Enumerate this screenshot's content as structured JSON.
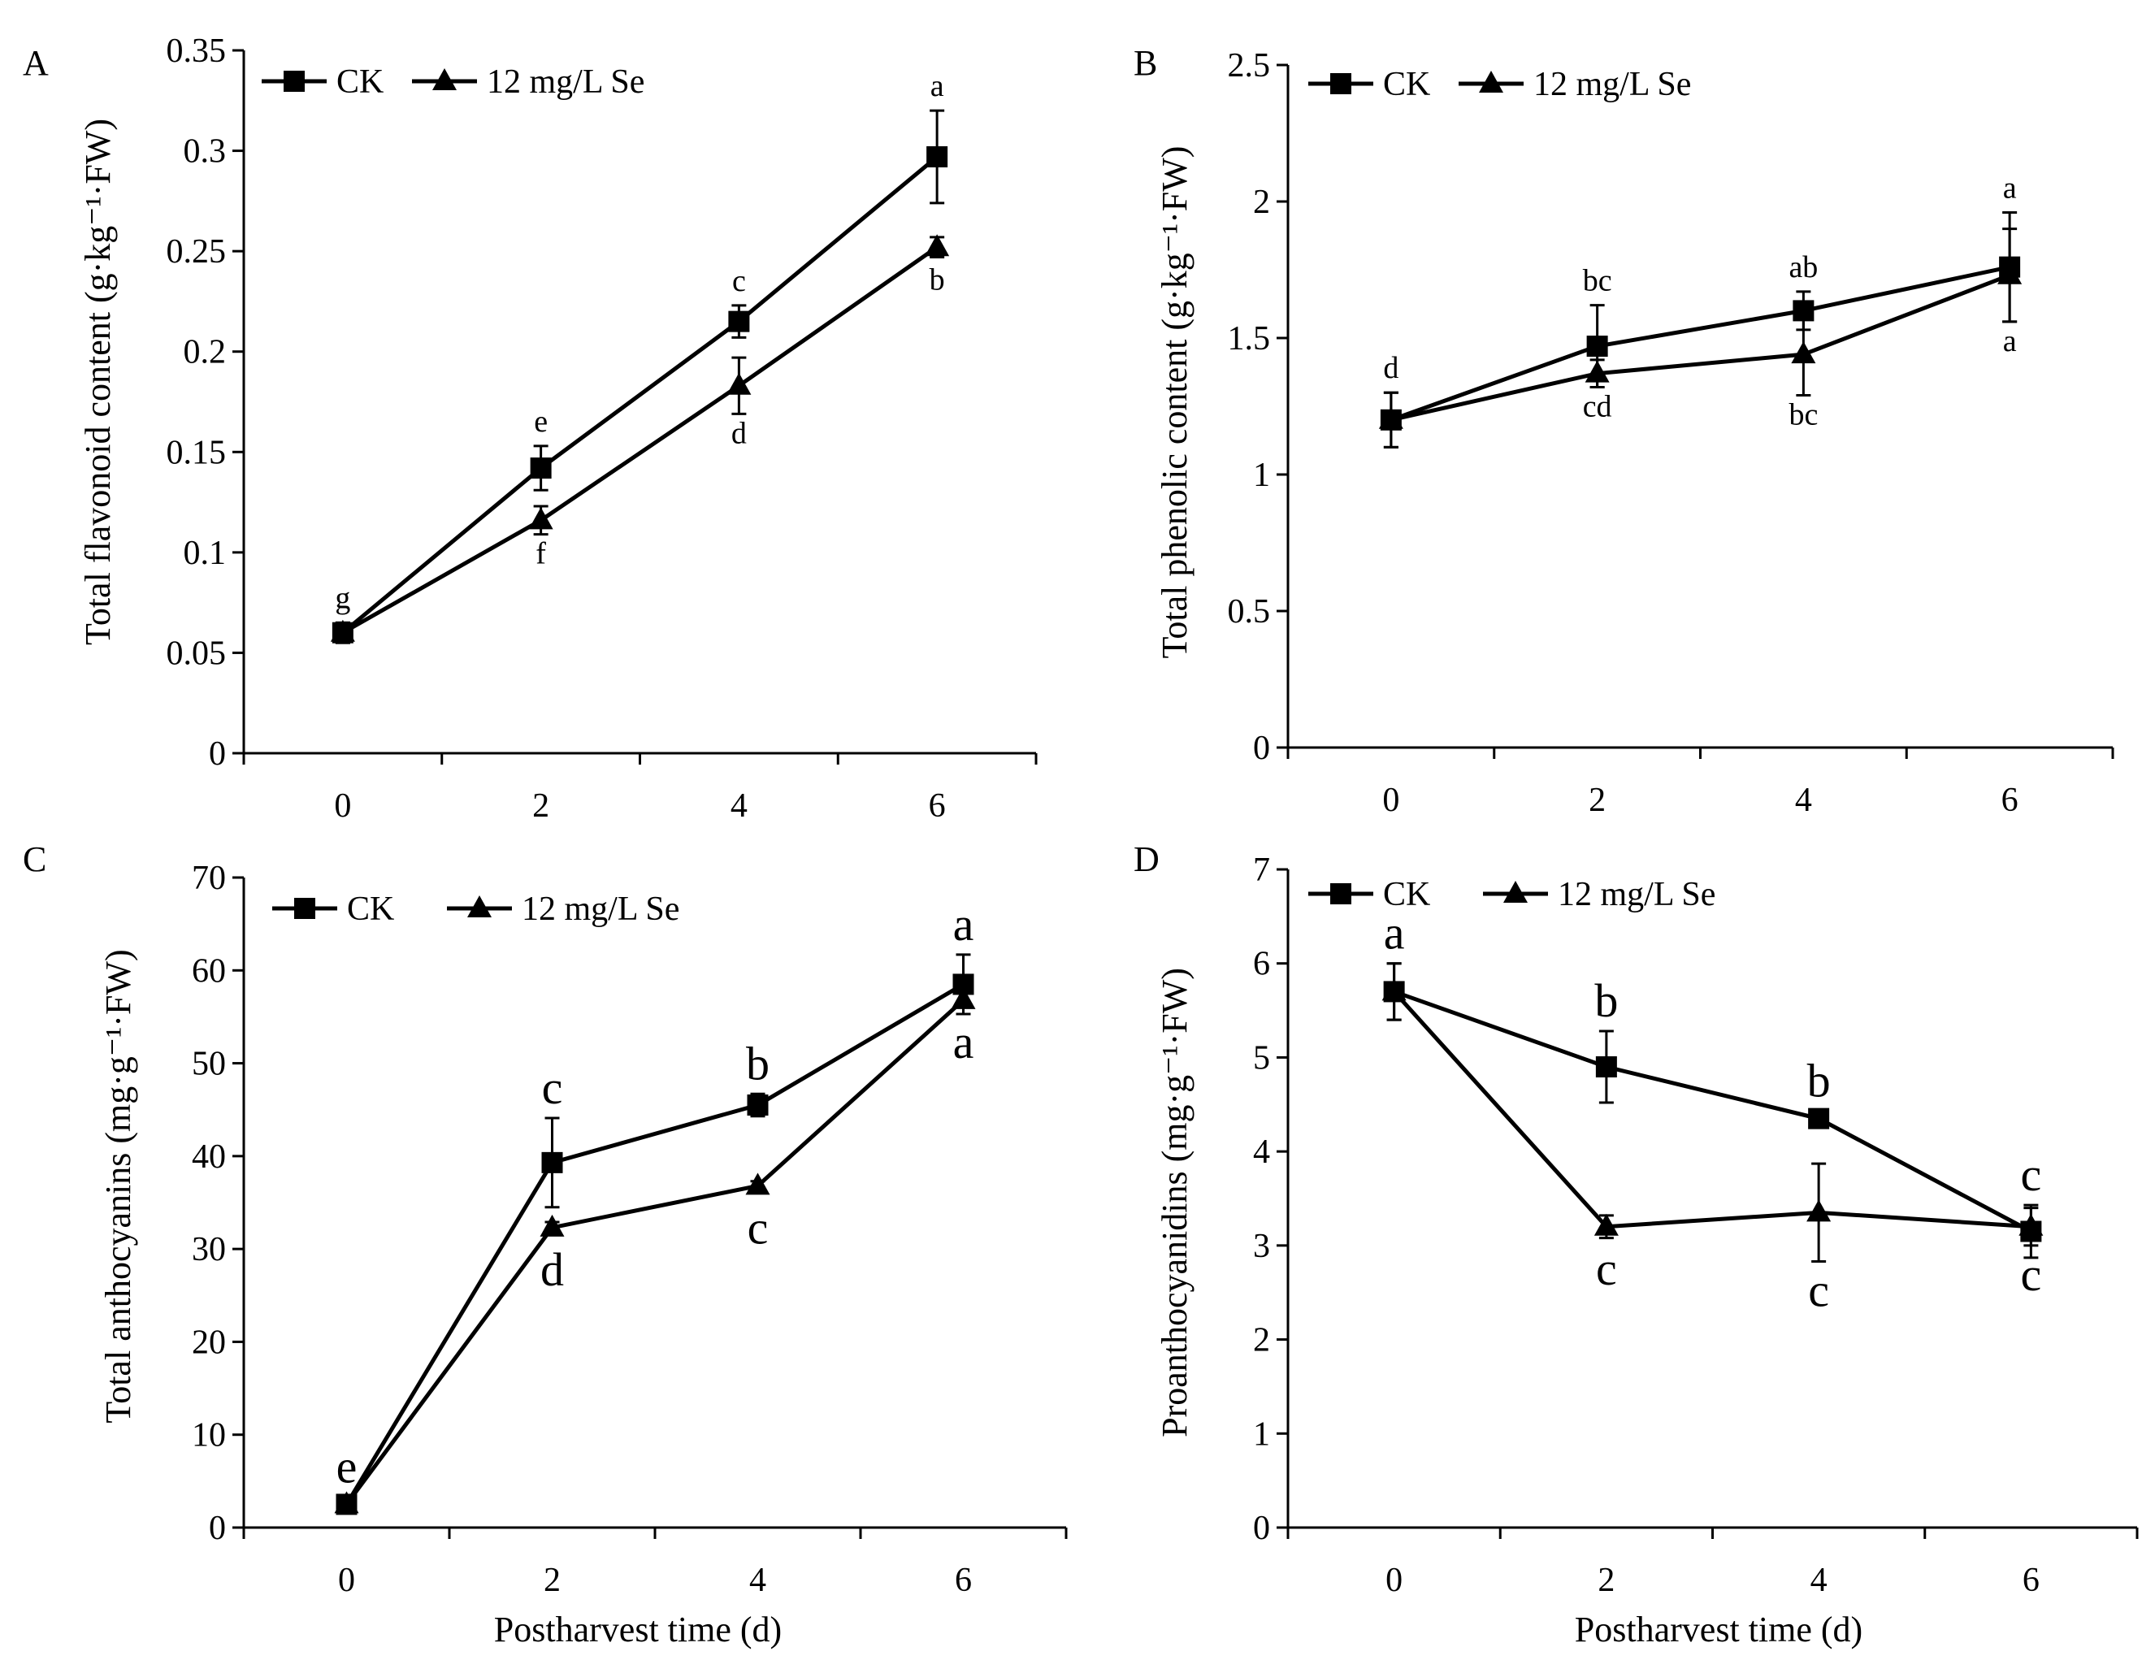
{
  "chart_data": [
    {
      "panel": "A",
      "type": "line",
      "xlabel": "",
      "ylabel": "Total flavonoid content (g·kg⁻¹·FW)",
      "x": [
        0,
        2,
        4,
        6
      ],
      "xlim": [
        -1,
        7
      ],
      "ylim": [
        0,
        0.35
      ],
      "yticks": [
        0,
        0.05,
        0.1,
        0.15,
        0.2,
        0.25,
        0.3,
        0.35
      ],
      "ytick_labels": [
        "0",
        "0.05",
        "0.1",
        "0.15",
        "0.2",
        "0.25",
        "0.3",
        "0.35"
      ],
      "xtick_labels": [
        "0",
        "2",
        "4",
        "6"
      ],
      "legend": {
        "position": "top-left",
        "entries": [
          "CK",
          "12 mg/L Se"
        ]
      },
      "letter_size": "small",
      "series": [
        {
          "name": "CK",
          "marker": "square",
          "values": [
            0.06,
            0.142,
            0.215,
            0.297
          ],
          "errors": [
            0.005,
            0.011,
            0.008,
            0.023
          ],
          "letters": [
            "g",
            "e",
            "c",
            "a"
          ],
          "letter_side": [
            "above",
            "above",
            "above",
            "above"
          ]
        },
        {
          "name": "12 mg/L Se",
          "marker": "triangle",
          "values": [
            0.06,
            0.116,
            0.183,
            0.252
          ],
          "errors": [
            0.005,
            0.007,
            0.014,
            0.005
          ],
          "letters": [
            "",
            "f",
            "d",
            "b"
          ],
          "letter_side": [
            "below",
            "below",
            "below",
            "below"
          ]
        }
      ]
    },
    {
      "panel": "B",
      "type": "line",
      "xlabel": "",
      "ylabel": "Total phenolic content (g·kg⁻¹·FW)",
      "x": [
        0,
        2,
        4,
        6
      ],
      "xlim": [
        -1,
        7
      ],
      "ylim": [
        0,
        2.5
      ],
      "yticks": [
        0,
        0.5,
        1,
        1.5,
        2,
        2.5
      ],
      "ytick_labels": [
        "0",
        "0.5",
        "1",
        "1.5",
        "2",
        "2.5"
      ],
      "xtick_labels": [
        "0",
        "2",
        "4",
        "6"
      ],
      "legend": {
        "position": "top-left",
        "entries": [
          "CK",
          "12 mg/L Se"
        ]
      },
      "letter_size": "small",
      "series": [
        {
          "name": "CK",
          "marker": "square",
          "values": [
            1.2,
            1.47,
            1.6,
            1.76
          ],
          "errors": [
            0.1,
            0.15,
            0.07,
            0.2
          ],
          "letters": [
            "d",
            "bc",
            "ab",
            "a"
          ],
          "letter_side": [
            "above",
            "above",
            "above",
            "above"
          ]
        },
        {
          "name": "12 mg/L Se",
          "marker": "triangle",
          "values": [
            1.2,
            1.37,
            1.44,
            1.73
          ],
          "errors": [
            0.1,
            0.05,
            0.15,
            0.17
          ],
          "letters": [
            "",
            "cd",
            "bc",
            "a"
          ],
          "letter_side": [
            "below",
            "below",
            "below",
            "below"
          ]
        }
      ]
    },
    {
      "panel": "C",
      "type": "line",
      "xlabel": "Postharvest time (d)",
      "ylabel": "Total anthocyanins (mg·g⁻¹·FW)",
      "x": [
        0,
        2,
        4,
        6
      ],
      "xlim": [
        -1,
        7
      ],
      "ylim": [
        0,
        70
      ],
      "yticks": [
        0,
        10,
        20,
        30,
        40,
        50,
        60,
        70
      ],
      "ytick_labels": [
        "0",
        "10",
        "20",
        "30",
        "40",
        "50",
        "60",
        "70"
      ],
      "xtick_labels": [
        "0",
        "2",
        "4",
        "6"
      ],
      "legend": {
        "position": "top-left",
        "entries": [
          "CK",
          "12 mg/L Se"
        ]
      },
      "letter_size": "large",
      "series": [
        {
          "name": "CK",
          "marker": "square",
          "values": [
            2.5,
            39.3,
            45.5,
            58.5
          ],
          "errors": [
            0.8,
            4.8,
            1.2,
            3.2
          ],
          "letters": [
            "e",
            "c",
            "b",
            "a"
          ],
          "letter_side": [
            "above",
            "above",
            "above",
            "above"
          ]
        },
        {
          "name": "12 mg/L Se",
          "marker": "triangle",
          "values": [
            2.5,
            32.3,
            36.8,
            56.8
          ],
          "errors": [
            0.5,
            0.6,
            0.5,
            0.8
          ],
          "letters": [
            "",
            "d",
            "c",
            "a"
          ],
          "letter_side": [
            "below",
            "below",
            "below",
            "below"
          ]
        }
      ]
    },
    {
      "panel": "D",
      "type": "line",
      "xlabel": "Postharvest time (d)",
      "ylabel": "Proanthocyanidins (mg·g⁻¹·FW)",
      "x": [
        0,
        2,
        4,
        6
      ],
      "xlim": [
        -1,
        7
      ],
      "ylim": [
        0,
        7
      ],
      "yticks": [
        0,
        1,
        2,
        3,
        4,
        5,
        6,
        7
      ],
      "ytick_labels": [
        "0",
        "1",
        "2",
        "3",
        "4",
        "5",
        "6",
        "7"
      ],
      "xtick_labels": [
        "0",
        "2",
        "4",
        "6"
      ],
      "legend": {
        "position": "top-left",
        "entries": [
          "CK",
          "12 mg/L Se"
        ]
      },
      "letter_size": "large",
      "series": [
        {
          "name": "CK",
          "marker": "square",
          "values": [
            5.7,
            4.9,
            4.35,
            3.15
          ],
          "errors": [
            0.3,
            0.38,
            0.08,
            0.28
          ],
          "letters": [
            "a",
            "b",
            "b",
            "c"
          ],
          "letter_side": [
            "above",
            "above",
            "above",
            "above"
          ]
        },
        {
          "name": "12 mg/L Se",
          "marker": "triangle",
          "values": [
            5.7,
            3.2,
            3.35,
            3.2
          ],
          "errors": [
            0.3,
            0.12,
            0.52,
            0.2
          ],
          "letters": [
            "",
            "c",
            "c",
            "c"
          ],
          "letter_side": [
            "below",
            "below",
            "below",
            "below"
          ]
        }
      ]
    }
  ]
}
